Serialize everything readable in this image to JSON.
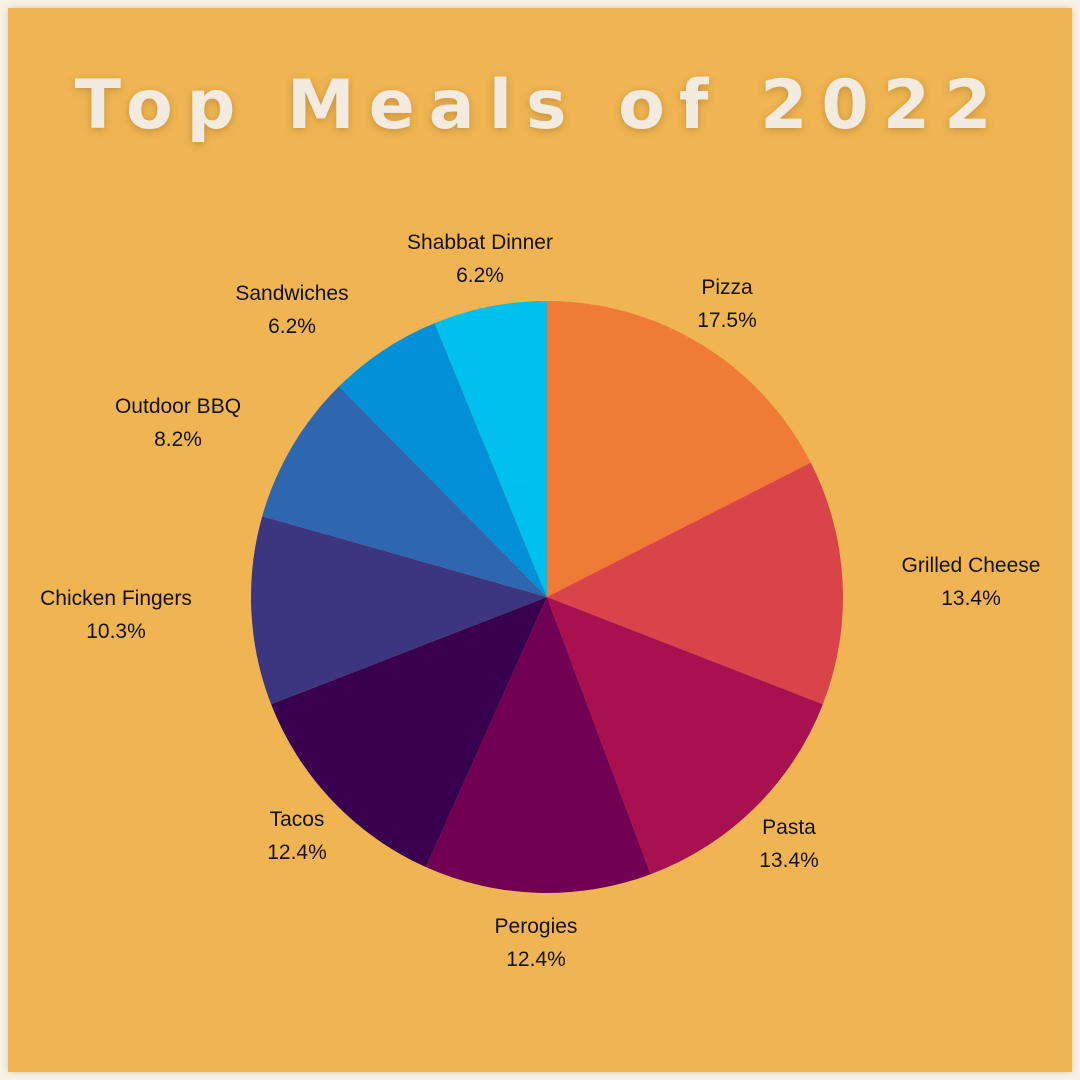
{
  "chart_data": {
    "type": "pie",
    "title": "Top Meals of 2022",
    "slices": [
      {
        "label": "Pizza",
        "value": 17.5,
        "value_label": "17.5%",
        "color": "#f07b36"
      },
      {
        "label": "Grilled Cheese",
        "value": 13.4,
        "value_label": "13.4%",
        "color": "#d9434a"
      },
      {
        "label": "Pasta",
        "value": 13.4,
        "value_label": "13.4%",
        "color": "#a81050"
      },
      {
        "label": "Perogies",
        "value": 12.4,
        "value_label": "12.4%",
        "color": "#720052"
      },
      {
        "label": "Tacos",
        "value": 12.4,
        "value_label": "12.4%",
        "color": "#3a0050"
      },
      {
        "label": "Chicken Fingers",
        "value": 10.3,
        "value_label": "10.3%",
        "color": "#3c3580"
      },
      {
        "label": "Outdoor BBQ",
        "value": 8.2,
        "value_label": "8.2%",
        "color": "#2e66b0"
      },
      {
        "label": "Sandwiches",
        "value": 6.2,
        "value_label": "6.2%",
        "color": "#0291d8"
      },
      {
        "label": "Shabbat Dinner",
        "value": 6.2,
        "value_label": "6.2%",
        "color": "#00c0ef"
      }
    ]
  },
  "colors": {
    "background": "#f0b552",
    "title": "#f3ebdf",
    "label": "#111111"
  }
}
